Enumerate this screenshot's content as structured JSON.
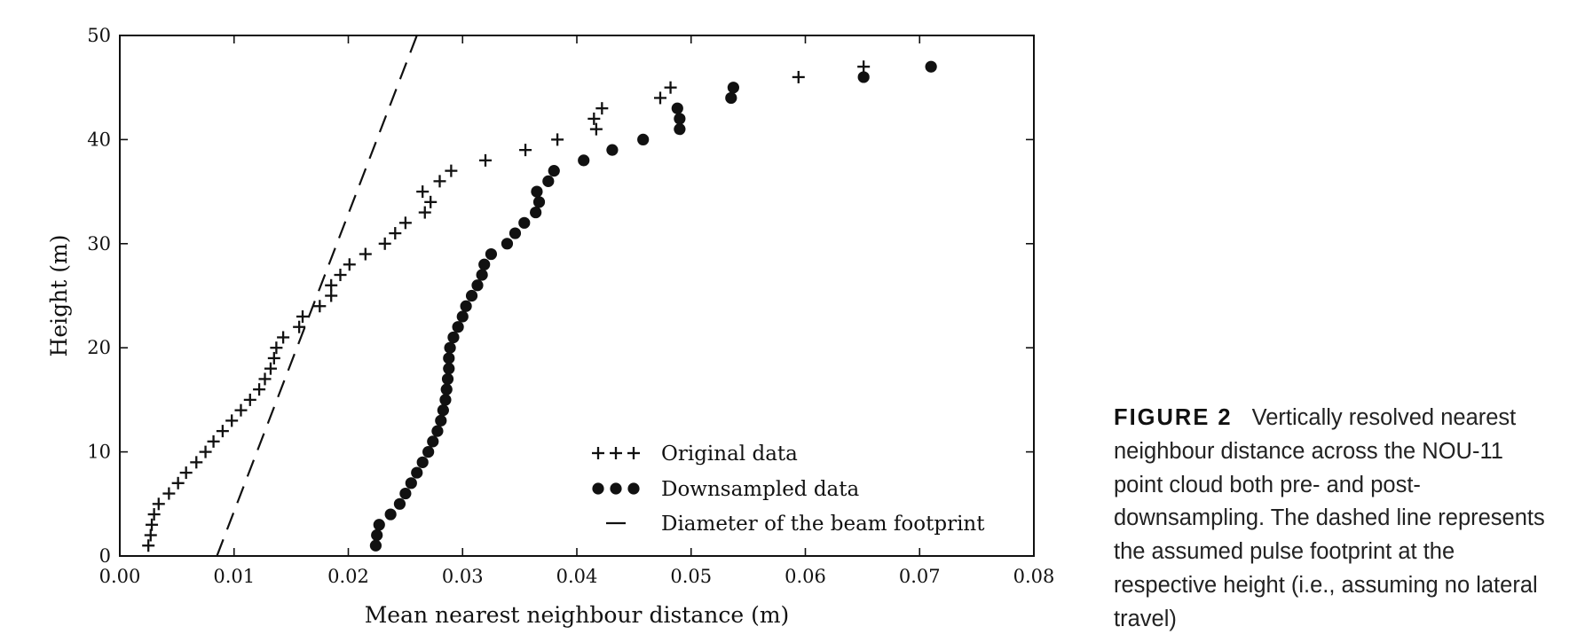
{
  "chart_data": {
    "type": "scatter",
    "xlabel": "Mean nearest neighbour distance (m)",
    "ylabel": "Height (m)",
    "xlim": [
      0.0,
      0.08
    ],
    "ylim": [
      0,
      50
    ],
    "xticks": [
      "0.00",
      "0.01",
      "0.02",
      "0.03",
      "0.04",
      "0.05",
      "0.06",
      "0.07",
      "0.08"
    ],
    "yticks": [
      "0",
      "10",
      "20",
      "30",
      "40",
      "50"
    ],
    "grid": false,
    "legend_position": "lower-right",
    "series": [
      {
        "name": "Original data",
        "marker": "plus",
        "points": [
          [
            0.0025,
            1
          ],
          [
            0.0027,
            2
          ],
          [
            0.0028,
            3
          ],
          [
            0.003,
            4
          ],
          [
            0.0034,
            5
          ],
          [
            0.0043,
            6
          ],
          [
            0.0051,
            7
          ],
          [
            0.0058,
            8
          ],
          [
            0.0067,
            9
          ],
          [
            0.0075,
            10
          ],
          [
            0.0082,
            11
          ],
          [
            0.009,
            12
          ],
          [
            0.0098,
            13
          ],
          [
            0.0106,
            14
          ],
          [
            0.0114,
            15
          ],
          [
            0.0122,
            16
          ],
          [
            0.0127,
            17
          ],
          [
            0.0132,
            18
          ],
          [
            0.0135,
            19
          ],
          [
            0.0137,
            20
          ],
          [
            0.0143,
            21
          ],
          [
            0.0157,
            22
          ],
          [
            0.016,
            23
          ],
          [
            0.0175,
            24
          ],
          [
            0.0185,
            25
          ],
          [
            0.0185,
            26
          ],
          [
            0.0193,
            27
          ],
          [
            0.0201,
            28
          ],
          [
            0.0215,
            29
          ],
          [
            0.0232,
            30
          ],
          [
            0.0241,
            31
          ],
          [
            0.025,
            32
          ],
          [
            0.0267,
            33
          ],
          [
            0.0272,
            34
          ],
          [
            0.0265,
            35
          ],
          [
            0.028,
            36
          ],
          [
            0.029,
            37
          ],
          [
            0.032,
            38
          ],
          [
            0.0355,
            39
          ],
          [
            0.0383,
            40
          ],
          [
            0.0417,
            41
          ],
          [
            0.0415,
            42
          ],
          [
            0.0422,
            43
          ],
          [
            0.0473,
            44
          ],
          [
            0.0482,
            45
          ],
          [
            0.0594,
            46
          ],
          [
            0.0651,
            47
          ]
        ]
      },
      {
        "name": "Downsampled data",
        "marker": "dot",
        "points": [
          [
            0.0224,
            1
          ],
          [
            0.0225,
            2
          ],
          [
            0.0227,
            3
          ],
          [
            0.0237,
            4
          ],
          [
            0.0245,
            5
          ],
          [
            0.025,
            6
          ],
          [
            0.0255,
            7
          ],
          [
            0.026,
            8
          ],
          [
            0.0265,
            9
          ],
          [
            0.027,
            10
          ],
          [
            0.0274,
            11
          ],
          [
            0.0278,
            12
          ],
          [
            0.0281,
            13
          ],
          [
            0.0283,
            14
          ],
          [
            0.0285,
            15
          ],
          [
            0.0286,
            16
          ],
          [
            0.0287,
            17
          ],
          [
            0.0288,
            18
          ],
          [
            0.0288,
            19
          ],
          [
            0.0289,
            20
          ],
          [
            0.0292,
            21
          ],
          [
            0.0296,
            22
          ],
          [
            0.03,
            23
          ],
          [
            0.0303,
            24
          ],
          [
            0.0308,
            25
          ],
          [
            0.0313,
            26
          ],
          [
            0.0317,
            27
          ],
          [
            0.0319,
            28
          ],
          [
            0.0325,
            29
          ],
          [
            0.0339,
            30
          ],
          [
            0.0346,
            31
          ],
          [
            0.0354,
            32
          ],
          [
            0.0364,
            33
          ],
          [
            0.0367,
            34
          ],
          [
            0.0365,
            35
          ],
          [
            0.0375,
            36
          ],
          [
            0.038,
            37
          ],
          [
            0.0406,
            38
          ],
          [
            0.0431,
            39
          ],
          [
            0.0458,
            40
          ],
          [
            0.049,
            41
          ],
          [
            0.049,
            42
          ],
          [
            0.0488,
            43
          ],
          [
            0.0535,
            44
          ],
          [
            0.0537,
            45
          ],
          [
            0.0651,
            46
          ],
          [
            0.071,
            47
          ]
        ]
      },
      {
        "name": "Diameter of the beam footprint",
        "marker": "dashed-line",
        "points": [
          [
            0.0085,
            0
          ],
          [
            0.026,
            50
          ]
        ]
      }
    ]
  },
  "caption": {
    "label": "FIGURE 2",
    "text": "Vertically resolved nearest neighbour distance across the NOU-11 point cloud both pre- and post-downsampling. The dashed line represents the assumed pulse footprint at the respective height (i.e., assuming no lateral travel)"
  }
}
